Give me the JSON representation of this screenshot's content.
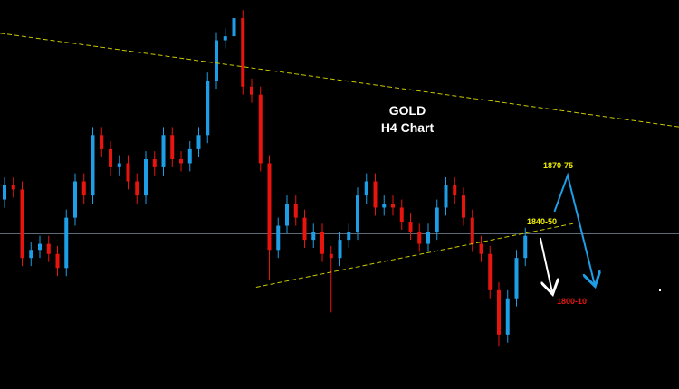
{
  "chart_data": {
    "type": "candlestick",
    "title": "GOLD",
    "subtitle": "H4 Chart",
    "ylim": [
      1766,
      1959
    ],
    "colors": {
      "bull": "#1e9ee6",
      "bear": "#e8150f",
      "trendline": "#c8c800",
      "hline": "#5a6a78",
      "arrow_up": "#1e9ee6",
      "arrow_down": "#ffffff"
    },
    "open": [
      1860,
      1867,
      1865,
      1831,
      1835,
      1838,
      1833,
      1826,
      1851,
      1869,
      1862,
      1892,
      1885,
      1876,
      1878,
      1869,
      1862,
      1880,
      1876,
      1892,
      1880,
      1878,
      1885,
      1892,
      1919,
      1939,
      1941,
      1950,
      1916,
      1912,
      1878,
      1835,
      1847,
      1858,
      1851,
      1840,
      1844,
      1833,
      1831,
      1840,
      1844,
      1862,
      1869,
      1856,
      1858,
      1856,
      1849,
      1844,
      1838,
      1844,
      1856,
      1867,
      1862,
      1851,
      1838,
      1833,
      1815,
      1793,
      1811,
      1831
    ],
    "high": [
      1871,
      1871,
      1869,
      1839,
      1842,
      1842,
      1837,
      1855,
      1873,
      1873,
      1896,
      1896,
      1889,
      1882,
      1882,
      1873,
      1884,
      1884,
      1896,
      1896,
      1884,
      1889,
      1896,
      1923,
      1943,
      1945,
      1955,
      1954,
      1920,
      1916,
      1882,
      1851,
      1862,
      1862,
      1855,
      1848,
      1848,
      1837,
      1844,
      1848,
      1866,
      1873,
      1873,
      1862,
      1862,
      1860,
      1853,
      1848,
      1848,
      1860,
      1871,
      1871,
      1866,
      1855,
      1842,
      1837,
      1819,
      1815,
      1835,
      1846
    ],
    "low": [
      1856,
      1861,
      1827,
      1827,
      1831,
      1829,
      1822,
      1822,
      1847,
      1858,
      1858,
      1881,
      1872,
      1872,
      1865,
      1858,
      1858,
      1872,
      1872,
      1876,
      1874,
      1874,
      1881,
      1888,
      1915,
      1935,
      1937,
      1912,
      1908,
      1874,
      1820,
      1831,
      1843,
      1847,
      1836,
      1836,
      1829,
      1804,
      1827,
      1836,
      1840,
      1858,
      1852,
      1852,
      1852,
      1845,
      1840,
      1834,
      1834,
      1840,
      1852,
      1858,
      1847,
      1834,
      1829,
      1811,
      1787,
      1789,
      1807,
      1827
    ],
    "close": [
      1867,
      1865,
      1831,
      1835,
      1838,
      1833,
      1826,
      1851,
      1869,
      1862,
      1892,
      1885,
      1876,
      1878,
      1869,
      1862,
      1880,
      1876,
      1892,
      1880,
      1878,
      1885,
      1892,
      1919,
      1939,
      1941,
      1950,
      1916,
      1912,
      1878,
      1835,
      1847,
      1858,
      1851,
      1840,
      1844,
      1833,
      1831,
      1840,
      1844,
      1862,
      1869,
      1856,
      1858,
      1856,
      1849,
      1844,
      1838,
      1844,
      1856,
      1867,
      1862,
      1851,
      1838,
      1833,
      1815,
      1793,
      1811,
      1831,
      1842
    ],
    "trendlines": [
      {
        "kind": "resistance",
        "from": [
          -0.5,
          1942.5
        ],
        "to": [
          76.4,
          1896.1
        ]
      },
      {
        "kind": "support",
        "from": [
          28.5,
          1816.5
        ],
        "to": [
          64.8,
          1848.4
        ]
      }
    ],
    "horizontal_line": 1843,
    "arrows": [
      {
        "kind": "bullish-scenario",
        "points": [
          [
            62.3,
            1854
          ],
          [
            63.8,
            1872
          ],
          [
            66.9,
            1817
          ]
        ]
      },
      {
        "kind": "bearish-scenario",
        "points": [
          [
            60.7,
            1841
          ],
          [
            62.1,
            1813
          ]
        ]
      }
    ],
    "annotations": [
      {
        "text": "1870-75",
        "color": "#f0f000"
      },
      {
        "text": "1840-50",
        "color": "#f0f000"
      },
      {
        "text": "1800-10",
        "color": "#e8150f"
      }
    ]
  }
}
